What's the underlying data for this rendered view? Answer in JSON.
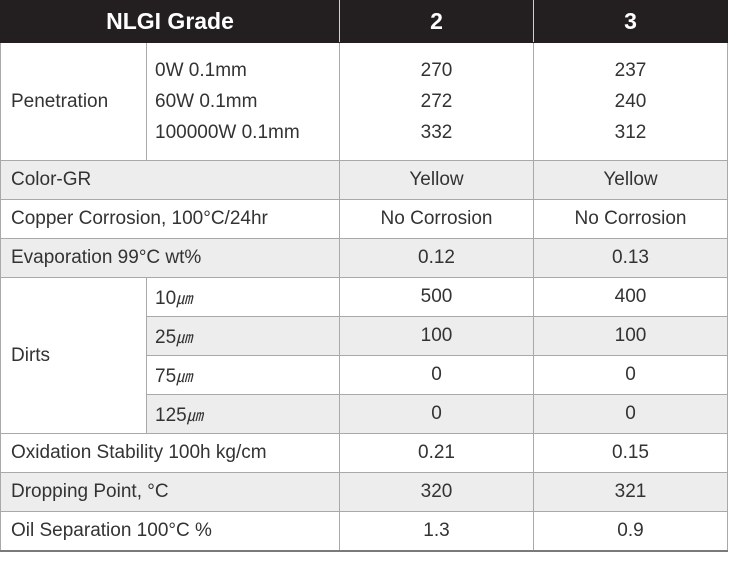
{
  "table": {
    "header": {
      "grade_label": "NLGI Grade",
      "col2": "2",
      "col3": "3"
    },
    "penetration": {
      "label": "Penetration",
      "rows": [
        {
          "sub": "0W 0.1mm",
          "v2": "270",
          "v3": "237"
        },
        {
          "sub": "60W 0.1mm",
          "v2": "272",
          "v3": "240"
        },
        {
          "sub": "100000W 0.1mm",
          "v2": "332",
          "v3": "312"
        }
      ]
    },
    "color": {
      "label": "Color-GR",
      "v2": "Yellow",
      "v3": "Yellow"
    },
    "copper": {
      "label": "Copper Corrosion, 100°C/24hr",
      "v2": "No Corrosion",
      "v3": "No Corrosion"
    },
    "evaporation": {
      "label": "Evaporation 99°C wt%",
      "v2": "0.12",
      "v3": "0.13"
    },
    "dirts": {
      "label": "Dirts",
      "rows": [
        {
          "num": "10",
          "unit": "㎛",
          "v2": "500",
          "v3": "400"
        },
        {
          "num": "25",
          "unit": "㎛",
          "v2": "100",
          "v3": "100"
        },
        {
          "num": "75",
          "unit": "㎛",
          "v2": "0",
          "v3": "0"
        },
        {
          "num": "125",
          "unit": "㎛",
          "v2": "0",
          "v3": "0"
        }
      ]
    },
    "oxidation": {
      "label": "Oxidation Stability 100h kg/cm",
      "v2": "0.21",
      "v3": "0.15"
    },
    "dropping": {
      "label": "Dropping Point, °C",
      "v2": "320",
      "v3": "321"
    },
    "oil_sep": {
      "label": "Oil Separation 100°C %",
      "v2": "1.3",
      "v3": "0.9"
    }
  }
}
